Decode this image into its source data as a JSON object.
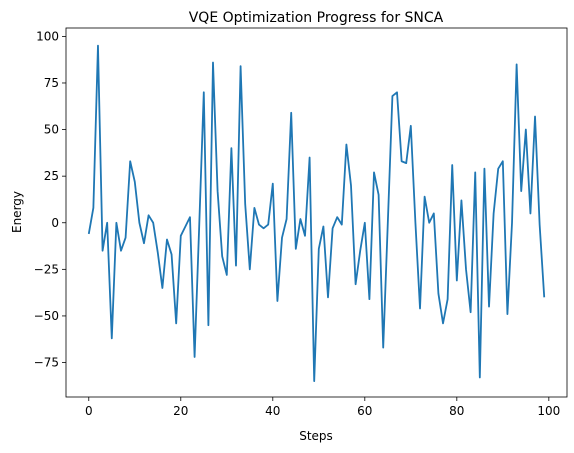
{
  "chart_data": {
    "type": "line",
    "title": "VQE Optimization Progress for SNCA",
    "xlabel": "Steps",
    "ylabel": "Energy",
    "xlim": [
      -4.95,
      103.95
    ],
    "ylim": [
      -93.5,
      104.5
    ],
    "xticks": [
      0,
      20,
      40,
      60,
      80,
      100
    ],
    "yticks": [
      -75,
      -50,
      -25,
      0,
      25,
      50,
      75,
      100
    ],
    "grid": false,
    "series": [
      {
        "color": "#1f77b4",
        "x": [
          0,
          1,
          2,
          3,
          4,
          5,
          6,
          7,
          8,
          9,
          10,
          11,
          12,
          13,
          14,
          15,
          16,
          17,
          18,
          19,
          20,
          21,
          22,
          23,
          24,
          25,
          26,
          27,
          28,
          29,
          30,
          31,
          32,
          33,
          34,
          35,
          36,
          37,
          38,
          39,
          40,
          41,
          42,
          43,
          44,
          45,
          46,
          47,
          48,
          49,
          50,
          51,
          52,
          53,
          54,
          55,
          56,
          57,
          58,
          59,
          60,
          61,
          62,
          63,
          64,
          65,
          66,
          67,
          68,
          69,
          70,
          71,
          72,
          73,
          74,
          75,
          76,
          77,
          78,
          79,
          80,
          81,
          82,
          83,
          84,
          85,
          86,
          87,
          88,
          89,
          90,
          91,
          92,
          93,
          94,
          95,
          96,
          97,
          98,
          99
        ],
        "values": [
          -6,
          8,
          95,
          -15,
          0,
          -62,
          0,
          -15,
          -8,
          33,
          22,
          0,
          -11,
          4,
          0,
          -16,
          -35,
          -9,
          -17,
          -54,
          -7,
          -2,
          3,
          -72,
          -2,
          70,
          -55,
          86,
          17,
          -18,
          -28,
          40,
          -23,
          84,
          10,
          -25,
          8,
          -1,
          -3,
          -1,
          21,
          -42,
          -8,
          2,
          59,
          -14,
          2,
          -7,
          35,
          -85,
          -14,
          -2,
          -40,
          -3,
          3,
          -1,
          42,
          20,
          -33,
          -15,
          0,
          -41,
          27,
          15,
          -67,
          0,
          68,
          70,
          33,
          32,
          52,
          0,
          -46,
          14,
          0,
          5,
          -38,
          -54,
          -41,
          31,
          -31,
          12,
          -25,
          -48,
          27,
          -83,
          29,
          -45,
          5,
          29,
          33,
          -49,
          0,
          85,
          17,
          50,
          5,
          57,
          -1,
          -40
        ]
      }
    ]
  }
}
